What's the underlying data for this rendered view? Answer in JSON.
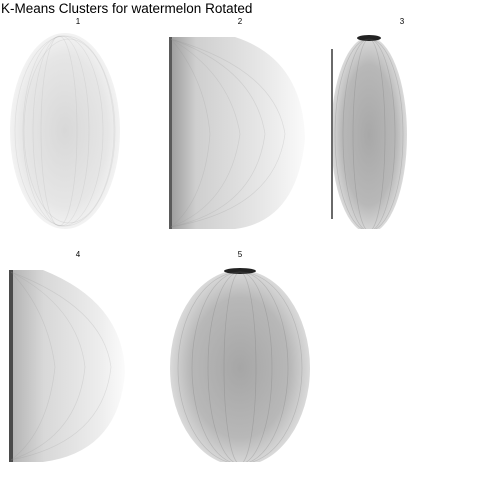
{
  "title": "K-Means Clusters for watermelon Rotated",
  "clusters": [
    {
      "label": "1",
      "style": "light-oval"
    },
    {
      "label": "2",
      "style": "left-dark-half"
    },
    {
      "label": "3",
      "style": "dark-oval"
    },
    {
      "label": "4",
      "style": "left-edge-half"
    },
    {
      "label": "5",
      "style": "wide-dark-oval"
    }
  ]
}
